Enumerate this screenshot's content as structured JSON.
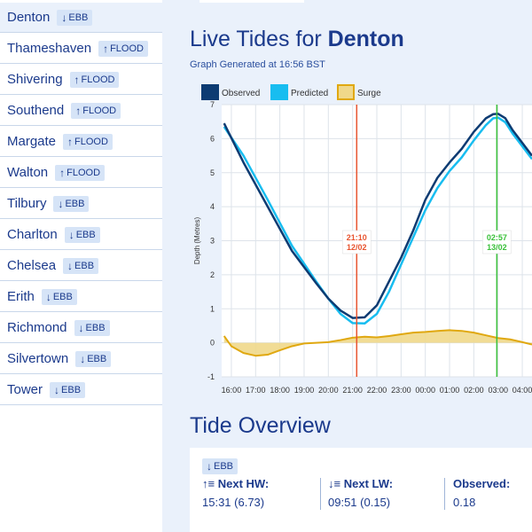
{
  "sidebar": {
    "stations": [
      {
        "name": "Denton",
        "arrow": "↓",
        "state": "EBB"
      },
      {
        "name": "Thameshaven",
        "arrow": "↑",
        "state": "FLOOD"
      },
      {
        "name": "Shivering",
        "arrow": "↑",
        "state": "FLOOD"
      },
      {
        "name": "Southend",
        "arrow": "↑",
        "state": "FLOOD"
      },
      {
        "name": "Margate",
        "arrow": "↑",
        "state": "FLOOD"
      },
      {
        "name": "Walton",
        "arrow": "↑",
        "state": "FLOOD"
      },
      {
        "name": "Tilbury",
        "arrow": "↓",
        "state": "EBB"
      },
      {
        "name": "Charlton",
        "arrow": "↓",
        "state": "EBB"
      },
      {
        "name": "Chelsea",
        "arrow": "↓",
        "state": "EBB"
      },
      {
        "name": "Erith",
        "arrow": "↓",
        "state": "EBB"
      },
      {
        "name": "Richmond",
        "arrow": "↓",
        "state": "EBB"
      },
      {
        "name": "Silvertown",
        "arrow": "↓",
        "state": "EBB"
      },
      {
        "name": "Tower",
        "arrow": "↓",
        "state": "EBB"
      }
    ]
  },
  "header": {
    "title_prefix": "Live Tides for ",
    "title_station": "Denton",
    "subtitle": "Graph Generated at 16:56 BST"
  },
  "colors": {
    "observed": "#0d3b72",
    "predicted": "#18bdf0",
    "surge_fill": "#f0d88a",
    "surge_line": "#e0a810",
    "now_marker": "#e8542f",
    "next_marker": "#3ac03a"
  },
  "chart_data": {
    "type": "line",
    "title": "",
    "xlabel": "",
    "ylabel": "Depth (Metres)",
    "ylim": [
      -1,
      7
    ],
    "yticks": [
      -1,
      0,
      1,
      2,
      3,
      4,
      5,
      6,
      7
    ],
    "x_range_hours": [
      15.6,
      28.4
    ],
    "xticks": [
      {
        "label": "16:00",
        "hour": 16
      },
      {
        "label": "17:00",
        "hour": 17
      },
      {
        "label": "18:00",
        "hour": 18
      },
      {
        "label": "19:00",
        "hour": 19
      },
      {
        "label": "20:00",
        "hour": 20
      },
      {
        "label": "21:00",
        "hour": 21
      },
      {
        "label": "22:00",
        "hour": 22
      },
      {
        "label": "23:00",
        "hour": 23
      },
      {
        "label": "00:00",
        "hour": 24
      },
      {
        "label": "01:00",
        "hour": 25
      },
      {
        "label": "02:00",
        "hour": 26
      },
      {
        "label": "03:00",
        "hour": 27
      },
      {
        "label": "04:00",
        "hour": 28
      }
    ],
    "legend": [
      {
        "name": "Observed",
        "key": "observed"
      },
      {
        "name": "Predicted",
        "key": "predicted"
      },
      {
        "name": "Surge",
        "key": "surge"
      }
    ],
    "series": [
      {
        "name": "Observed",
        "key": "observed",
        "x": [
          15.7,
          16.5,
          17.5,
          18.5,
          19.5,
          20.0,
          20.5,
          21.0,
          21.5,
          22.0,
          22.5,
          23.0,
          23.5,
          24.0,
          24.5,
          25.0,
          25.5,
          26.0,
          26.5,
          26.8,
          27.0,
          27.3,
          27.6,
          28.4
        ],
        "y": [
          6.45,
          5.3,
          4.0,
          2.7,
          1.75,
          1.3,
          0.95,
          0.73,
          0.75,
          1.1,
          1.8,
          2.5,
          3.3,
          4.2,
          4.85,
          5.3,
          5.7,
          6.2,
          6.6,
          6.72,
          6.73,
          6.6,
          6.25,
          5.5
        ]
      },
      {
        "name": "Predicted",
        "key": "predicted",
        "x": [
          15.7,
          16.5,
          17.5,
          18.5,
          19.5,
          20.0,
          20.5,
          21.0,
          21.5,
          22.0,
          22.5,
          23.0,
          23.5,
          24.0,
          24.5,
          25.0,
          25.5,
          26.0,
          26.5,
          26.8,
          27.0,
          27.3,
          27.6,
          28.4
        ],
        "y": [
          6.35,
          5.5,
          4.2,
          2.85,
          1.8,
          1.3,
          0.85,
          0.58,
          0.57,
          0.85,
          1.5,
          2.3,
          3.1,
          3.9,
          4.55,
          5.05,
          5.45,
          5.95,
          6.4,
          6.6,
          6.62,
          6.48,
          6.15,
          5.4
        ]
      },
      {
        "name": "Surge",
        "key": "surge",
        "x": [
          15.7,
          16.0,
          16.5,
          17.0,
          17.5,
          18.0,
          18.5,
          19.0,
          19.5,
          20.0,
          20.5,
          21.0,
          21.5,
          22.0,
          22.5,
          23.0,
          23.5,
          24.0,
          24.5,
          25.0,
          25.5,
          26.0,
          26.5,
          27.0,
          27.5,
          28.0,
          28.4
        ],
        "y": [
          0.2,
          -0.1,
          -0.3,
          -0.38,
          -0.35,
          -0.22,
          -0.1,
          -0.02,
          0.0,
          0.02,
          0.08,
          0.15,
          0.18,
          0.16,
          0.2,
          0.25,
          0.3,
          0.32,
          0.35,
          0.37,
          0.35,
          0.3,
          0.22,
          0.14,
          0.1,
          0.02,
          -0.05
        ]
      }
    ],
    "markers": [
      {
        "time": "21:10",
        "date": "12/02",
        "hour": 21.17,
        "key": "now_marker"
      },
      {
        "time": "02:57",
        "date": "13/02",
        "hour": 26.95,
        "key": "next_marker"
      }
    ]
  },
  "overview": {
    "title": "Tide Overview",
    "state_arrow": "↓",
    "state": "EBB",
    "next_hw_label": "Next HW:",
    "next_hw_icon": "↑≡",
    "next_hw_value": "15:31 (6.73)",
    "next_lw_label": "Next LW:",
    "next_lw_icon": "↓≡",
    "next_lw_value": "09:51 (0.15)",
    "observed_label": "Observed:",
    "observed_value": "0.18"
  }
}
